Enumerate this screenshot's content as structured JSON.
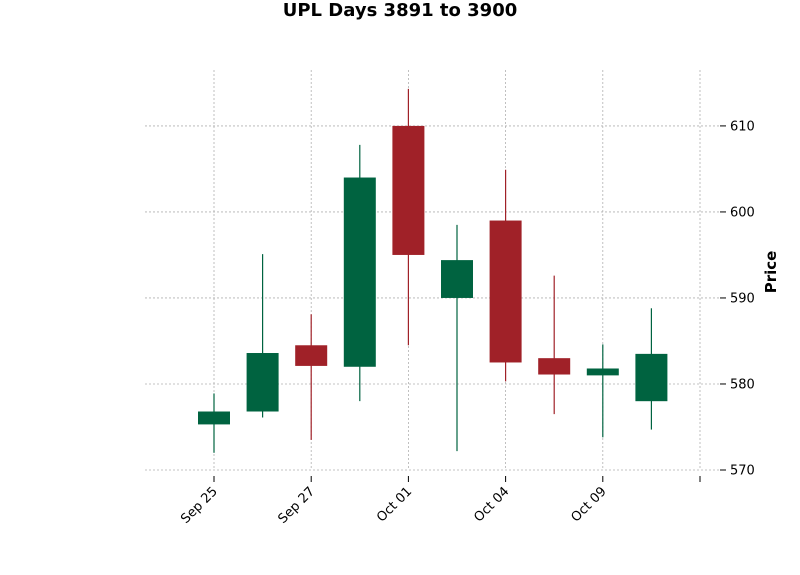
{
  "chart_data": {
    "type": "candlestick",
    "title": "UPL Days 3891 to 3900",
    "xlabel": "",
    "ylabel": "Price",
    "ylim": [
      570,
      616.5
    ],
    "y_ticks": [
      570,
      580,
      590,
      600,
      610
    ],
    "y_axis_side": "right",
    "grid": true,
    "up_color": "#006340",
    "down_color": "#a02128",
    "x_tick_labels": [
      {
        "label": "Sep 25",
        "index": 0
      },
      {
        "label": "Sep 27",
        "index": 2
      },
      {
        "label": "Oct 01",
        "index": 4
      },
      {
        "label": "Oct 04",
        "index": 6
      },
      {
        "label": "Oct 09",
        "index": 8
      },
      {
        "label": "",
        "index": 10
      }
    ],
    "candles": [
      {
        "open": 575.3,
        "high": 578.9,
        "low": 572.0,
        "close": 576.8
      },
      {
        "open": 576.8,
        "high": 595.1,
        "low": 576.1,
        "close": 583.6
      },
      {
        "open": 584.5,
        "high": 588.1,
        "low": 573.5,
        "close": 582.1
      },
      {
        "open": 582.0,
        "high": 607.8,
        "low": 578.0,
        "close": 604.0
      },
      {
        "open": 610.0,
        "high": 614.3,
        "low": 584.5,
        "close": 595.0
      },
      {
        "open": 590.0,
        "high": 598.5,
        "low": 572.2,
        "close": 594.4
      },
      {
        "open": 599.0,
        "high": 604.9,
        "low": 580.3,
        "close": 582.5
      },
      {
        "open": 583.0,
        "high": 592.6,
        "low": 576.5,
        "close": 581.1
      },
      {
        "open": 581.0,
        "high": 584.6,
        "low": 573.8,
        "close": 581.8
      },
      {
        "open": 578.0,
        "high": 588.8,
        "low": 574.7,
        "close": 583.5
      }
    ]
  }
}
